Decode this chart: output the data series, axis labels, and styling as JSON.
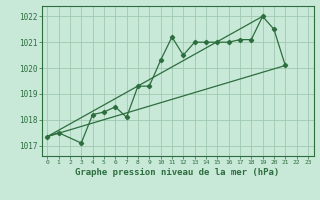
{
  "xlabel": "Graphe pression niveau de la mer (hPa)",
  "bg_color": "#c8e8d8",
  "line_color": "#2d6e3e",
  "grid_color": "#a0c8b0",
  "ylim": [
    1016.6,
    1022.4
  ],
  "xlim": [
    -0.5,
    23.5
  ],
  "yticks": [
    1017,
    1018,
    1019,
    1020,
    1021,
    1022
  ],
  "xticks": [
    0,
    1,
    2,
    3,
    4,
    5,
    6,
    7,
    8,
    9,
    10,
    11,
    12,
    13,
    14,
    15,
    16,
    17,
    18,
    19,
    20,
    21,
    22,
    23
  ],
  "pressure_x": [
    0,
    1,
    3,
    4,
    5,
    6,
    7,
    8,
    9,
    10,
    11,
    12,
    13,
    14,
    15,
    16,
    17,
    18,
    19,
    20,
    21
  ],
  "pressure_y": [
    1017.35,
    1017.5,
    1017.1,
    1018.2,
    1018.3,
    1018.5,
    1018.1,
    1019.3,
    1019.3,
    1020.3,
    1021.2,
    1020.5,
    1021.0,
    1021.0,
    1021.0,
    1021.0,
    1021.1,
    1021.1,
    1022.0,
    1021.5,
    1020.1
  ],
  "trend1_x": [
    0,
    21
  ],
  "trend1_y": [
    1017.35,
    1020.1
  ],
  "trend2_x": [
    0,
    19
  ],
  "trend2_y": [
    1017.35,
    1022.0
  ]
}
